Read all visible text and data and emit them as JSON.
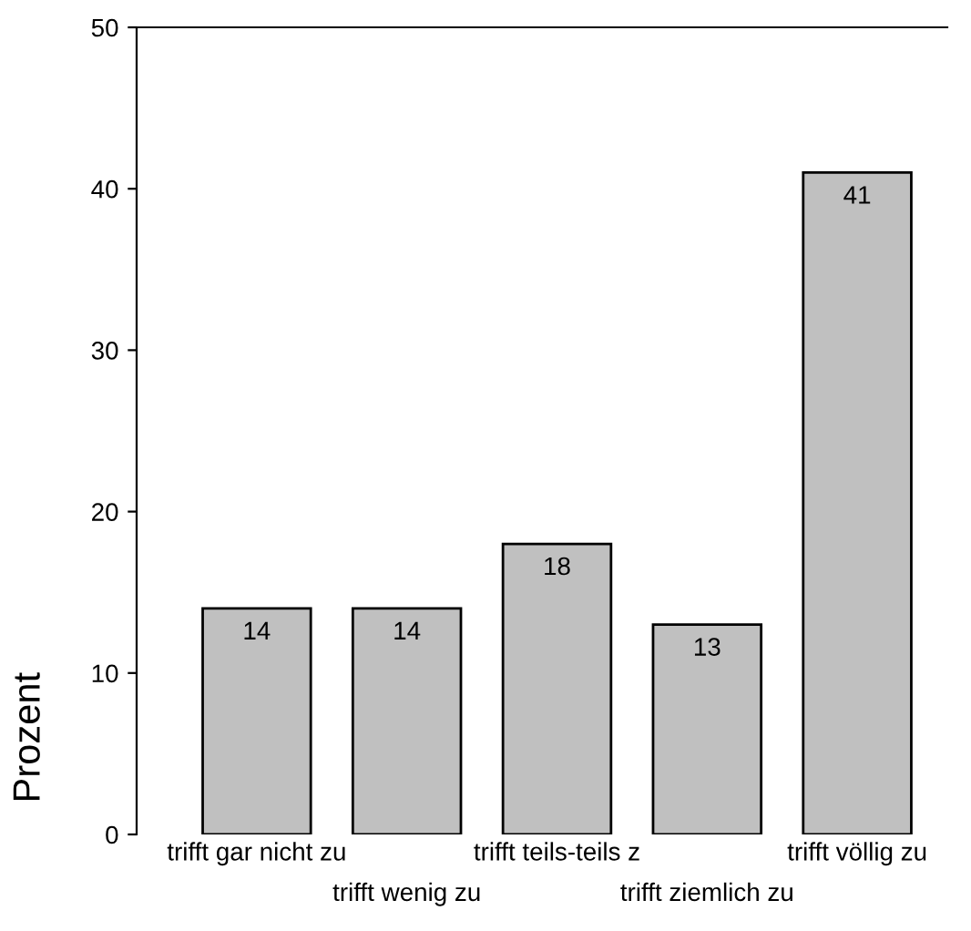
{
  "chart_data": {
    "type": "bar",
    "ylabel": "Prozent",
    "categories": [
      "trifft gar nicht zu",
      "trifft wenig zu",
      "trifft teils-teils z",
      "trifft ziemlich zu",
      "trifft völlig zu"
    ],
    "values": [
      14,
      14,
      18,
      13,
      41
    ],
    "color": "#c0c0c0",
    "ylim": [
      0,
      50
    ],
    "yticks": [
      0,
      10,
      20,
      30,
      40,
      50
    ],
    "data_labels": true,
    "grid": false
  }
}
